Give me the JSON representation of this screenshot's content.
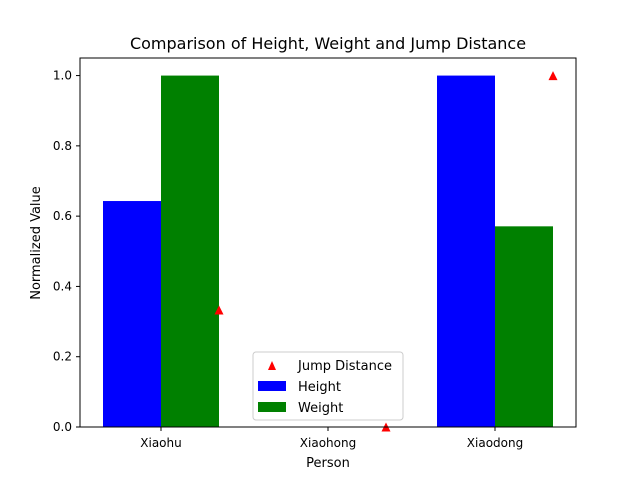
{
  "chart_data": {
    "type": "bar",
    "title": "Comparison of Height, Weight and Jump Distance",
    "xlabel": "Person",
    "ylabel": "Normalized Value",
    "categories": [
      "Xiaohu",
      "Xiaohong",
      "Xiaodong"
    ],
    "ylim": [
      0,
      1.05
    ],
    "yticks": [
      "0.0",
      "0.2",
      "0.4",
      "0.6",
      "0.8",
      "1.0"
    ],
    "series": [
      {
        "name": "Height",
        "kind": "bar",
        "color": "#0000ff",
        "values": [
          0.643,
          0.0,
          1.0
        ]
      },
      {
        "name": "Weight",
        "kind": "bar",
        "color": "#008000",
        "values": [
          1.0,
          0.0,
          0.571
        ]
      },
      {
        "name": "Jump Distance",
        "kind": "scatter",
        "marker": "triangle",
        "color": "#ff0000",
        "values": [
          0.333,
          0.0,
          1.0
        ]
      }
    ],
    "legend": {
      "position": "lower center",
      "entries": [
        "Jump Distance",
        "Height",
        "Weight"
      ]
    },
    "grid": false
  }
}
